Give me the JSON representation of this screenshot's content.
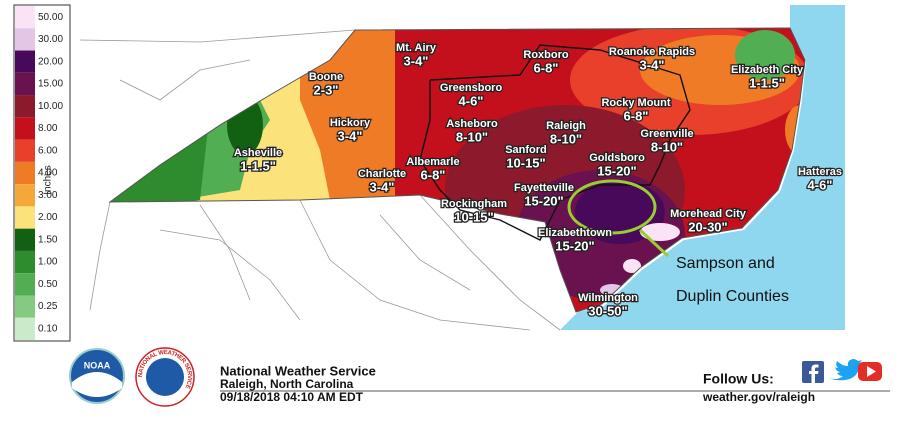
{
  "legend": {
    "unit": "Inches",
    "items": [
      {
        "label": "50.00",
        "color": "#fbe3f6"
      },
      {
        "label": "30.00",
        "color": "#e3c6e6"
      },
      {
        "label": "20.00",
        "color": "#48095a"
      },
      {
        "label": "15.00",
        "color": "#6a1250"
      },
      {
        "label": "10.00",
        "color": "#8c1a2c"
      },
      {
        "label": "8.00",
        "color": "#c4101c"
      },
      {
        "label": "6.00",
        "color": "#e8402a"
      },
      {
        "label": "4.00",
        "color": "#f07b26"
      },
      {
        "label": "3.00",
        "color": "#f4a83a"
      },
      {
        "label": "2.00",
        "color": "#fbe27a"
      },
      {
        "label": "1.50",
        "color": "#126012"
      },
      {
        "label": "1.00",
        "color": "#2e8b2e"
      },
      {
        "label": "0.50",
        "color": "#52ae52"
      },
      {
        "label": "0.25",
        "color": "#83cb83"
      },
      {
        "label": "0.10",
        "color": "#c9ebc9"
      }
    ]
  },
  "cities": [
    {
      "name": "Mt. Airy",
      "amount": "3-4\""
    },
    {
      "name": "Roxboro",
      "amount": "6-8\""
    },
    {
      "name": "Roanoke Rapids",
      "amount": "3-4\""
    },
    {
      "name": "Elizabeth City",
      "amount": "1-1.5\""
    },
    {
      "name": "Boone",
      "amount": "2-3\""
    },
    {
      "name": "Greensboro",
      "amount": "4-6\""
    },
    {
      "name": "Rocky Mount",
      "amount": "6-8\""
    },
    {
      "name": "Hickory",
      "amount": "3-4\""
    },
    {
      "name": "Asheboro",
      "amount": "8-10\""
    },
    {
      "name": "Raleigh",
      "amount": "8-10\""
    },
    {
      "name": "Greenville",
      "amount": "8-10\""
    },
    {
      "name": "Asheville",
      "amount": "1-1.5\""
    },
    {
      "name": "Albemarle",
      "amount": "6-8\""
    },
    {
      "name": "Sanford",
      "amount": "10-15\""
    },
    {
      "name": "Goldsboro",
      "amount": "15-20\""
    },
    {
      "name": "Charlotte",
      "amount": "3-4\""
    },
    {
      "name": "Hatteras",
      "amount": "4-6\""
    },
    {
      "name": "Fayetteville",
      "amount": "15-20\""
    },
    {
      "name": "Rockingham",
      "amount": "10-15\""
    },
    {
      "name": "Morehead City",
      "amount": "20-30\""
    },
    {
      "name": "Elizabethtown",
      "amount": "15-20\""
    },
    {
      "name": "Wilmington",
      "amount": "30-50\""
    }
  ],
  "annotation": {
    "lines": [
      "Sampson and",
      "Duplin Counties"
    ]
  },
  "logos": {
    "noaa": "NOAA",
    "nws": "NATIONAL WEATHER SERVICE"
  },
  "footer": {
    "office": "National Weather Service",
    "location": "Raleigh, North Carolina",
    "timestamp": "09/18/2018 04:10 AM EDT",
    "follow": "Follow Us:",
    "url": "weather.gov/raleigh"
  }
}
